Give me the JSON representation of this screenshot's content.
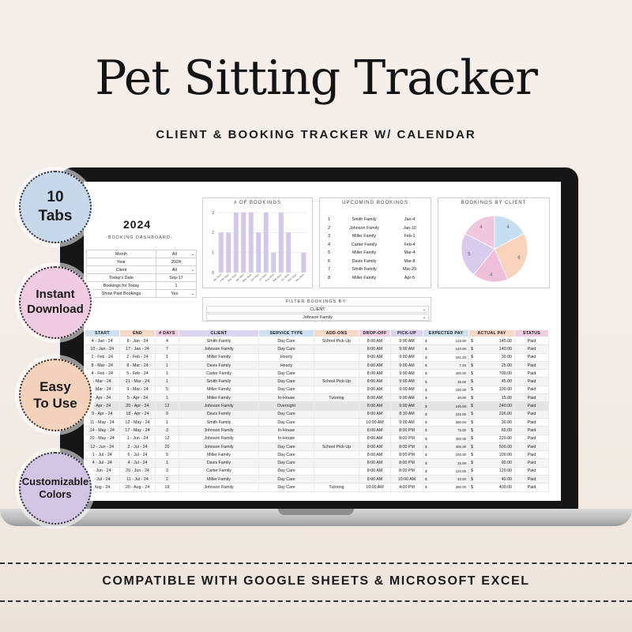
{
  "header": {
    "title": "Pet Sitting Tracker",
    "subtitle": "CLIENT & BOOKING TRACKER W/ CALENDAR"
  },
  "badges": [
    {
      "lines": [
        "10",
        "Tabs"
      ]
    },
    {
      "lines": [
        "Instant",
        "Download"
      ]
    },
    {
      "lines": [
        "Easy",
        "To Use"
      ]
    },
    {
      "lines": [
        "Customizable",
        "Colors"
      ]
    }
  ],
  "footer": {
    "text": "COMPATIBLE WITH GOOGLE SHEETS & MICROSOFT EXCEL"
  },
  "dashboard": {
    "year": "2024",
    "subtitle": "-BOOKING DASHBOARD-",
    "settings": [
      {
        "label": "Month",
        "value": "All",
        "dropdown": true
      },
      {
        "label": "Year",
        "value": "2024",
        "dropdown": false
      },
      {
        "label": "Client",
        "value": "All",
        "dropdown": true
      },
      {
        "label": "Today's Date",
        "value": "Sep-17",
        "dropdown": false
      },
      {
        "label": "Bookings for Today",
        "value": "1",
        "dropdown": false
      },
      {
        "label": "Show Paid Bookings",
        "value": "Yes",
        "dropdown": true
      }
    ],
    "upcoming": {
      "title": "UPCOMING BOOKINGS",
      "rows": [
        {
          "n": "1",
          "client": "Smith Family",
          "date": "Jan-4"
        },
        {
          "n": "2",
          "client": "Johnson Family",
          "date": "Jan-10"
        },
        {
          "n": "3",
          "client": "Miller Family",
          "date": "Feb-1"
        },
        {
          "n": "4",
          "client": "Carter Family",
          "date": "Feb-4"
        },
        {
          "n": "5",
          "client": "Miller Family",
          "date": "Mar-4"
        },
        {
          "n": "6",
          "client": "Davis Family",
          "date": "Mar-8"
        },
        {
          "n": "7",
          "client": "Smith Family",
          "date": "Mar-20"
        },
        {
          "n": "8",
          "client": "Miller Family",
          "date": "Apr-5"
        }
      ]
    },
    "filter": {
      "title": "FILTER BOOKINGS BY:",
      "field": "CLIENT",
      "value": "Johnson Family"
    }
  },
  "chart_data": [
    {
      "type": "bar",
      "title": "# OF BOOKINGS",
      "categories": [
        "Jan 2024",
        "Feb 2024",
        "Mar 2024",
        "Apr 2024",
        "May 2024",
        "Jun 2024",
        "Jul 2024",
        "Aug 2024",
        "Sep 2024",
        "Oct 2024",
        "Nov 2024",
        "Dec 2024"
      ],
      "values": [
        2,
        2,
        3,
        3,
        3,
        2,
        3,
        1,
        3,
        2,
        0,
        1
      ],
      "ylim": [
        0,
        3
      ],
      "yticks": [
        0,
        1,
        2,
        3
      ],
      "color": "#d4c8ea",
      "grid": true
    },
    {
      "type": "pie",
      "title": "BOOKINGS BY CLIENT",
      "values": [
        4,
        6,
        4,
        5,
        4
      ],
      "labels": [
        "4",
        "6",
        "4",
        "5",
        "4"
      ],
      "colors": [
        "#c5def2",
        "#f7d3bb",
        "#efbfd9",
        "#d9cbed",
        "#f0c8de"
      ]
    }
  ],
  "booking_table": {
    "columns": [
      {
        "label": "START",
        "color": "#cfe0f0"
      },
      {
        "label": "END",
        "color": "#f6d8c6"
      },
      {
        "label": "# DAYS",
        "color": "#f0cde0"
      },
      {
        "label": "CLIENT",
        "color": "#dcd3ee"
      },
      {
        "label": "SERVICE TYPE",
        "color": "#cfe0f0"
      },
      {
        "label": "ADD-ONS",
        "color": "#f6d8c6"
      },
      {
        "label": "DROP-OFF",
        "color": "#f0cde0"
      },
      {
        "label": "PICK-UP",
        "color": "#dcd3ee"
      },
      {
        "label": "EXPECTED PAY",
        "color": "#cfe0f0"
      },
      {
        "label": "ACTUAL PAY",
        "color": "#f6d8c6"
      },
      {
        "label": "STATUS",
        "color": "#f0cde0"
      }
    ],
    "currency": "$",
    "rows": [
      [
        "4 - Jan - 24",
        "8 - Jan - 24",
        "4",
        "Smith Family",
        "Day Care",
        "School Pick-Up",
        "8:00 AM",
        "9:00 AM",
        "125.00",
        "145.00",
        "Paid"
      ],
      [
        "10 - Jan - 24",
        "17 - Jan - 24",
        "7",
        "Johnson Family",
        "Day Care",
        "",
        "8:00 AM",
        "9:00 AM",
        "140.00",
        "140.00",
        "Paid"
      ],
      [
        "1 - Feb - 24",
        "2 - Feb - 24",
        "1",
        "Miller Family",
        "Hourly",
        "",
        "8:00 AM",
        "9:00 AM",
        "181.25",
        "30.00",
        "Paid"
      ],
      [
        "8 - Mar - 24",
        "8 - Mar - 24",
        "1",
        "Davis Family",
        "Hourly",
        "",
        "8:00 AM",
        "9:00 AM",
        "7.25",
        "25.00",
        "Paid"
      ],
      [
        "4 - Feb - 24",
        "5 - Feb - 24",
        "1",
        "Carter Family",
        "Day Care",
        "",
        "8:00 AM",
        "9:00 AM",
        "400.00",
        "700.00",
        "Paid"
      ],
      [
        "- Mar - 24",
        "21 - Mar - 24",
        "1",
        "Smith Family",
        "Day Care",
        "School Pick-Up",
        "8:00 AM",
        "9:00 AM",
        "35.00",
        "45.00",
        "Paid"
      ],
      [
        "- Mar - 24",
        "9 - Mar - 24",
        "5",
        "Miller Family",
        "Day Care",
        "",
        "8:00 AM",
        "9:00 AM",
        "100.00",
        "100.00",
        "Paid"
      ],
      [
        "- Apr - 24",
        "5 - Apr - 24",
        "1",
        "Miller Family",
        "In-House",
        "Tutoring",
        "8:00 AM",
        "9:00 AM",
        "30.00",
        "15.00",
        "Paid"
      ],
      [
        "- Apr - 24",
        "20 - Apr - 24",
        "12",
        "Johnson Family",
        "Overnight",
        "",
        "8:00 AM",
        "9:00 AM",
        "240.00",
        "240.00",
        "Paid"
      ],
      [
        "9 - Apr - 24",
        "18 - Apr - 24",
        "9",
        "Davis Family",
        "Day Care",
        "",
        "8:00 AM",
        "8:30 AM",
        "225.00",
        "226.00",
        "Paid"
      ],
      [
        "11 - May - 24",
        "12 - May - 24",
        "1",
        "Smith Family",
        "Day Care",
        "",
        "10:00 AM",
        "9:00 AM",
        "350.00",
        "30.00",
        "Paid"
      ],
      [
        "14 - May - 24",
        "17 - May - 24",
        "3",
        "Johnson Family",
        "In-House",
        "",
        "8:00 AM",
        "8:00 PM",
        "75.00",
        "60.00",
        "Paid"
      ],
      [
        "20 - May - 24",
        "1 - Jun - 24",
        "12",
        "Johnson Family",
        "In-House",
        "",
        "8:00 AM",
        "8:00 PM",
        "300.00",
        "220.00",
        "Paid"
      ],
      [
        "12 - Jun - 24",
        "2 - Jul - 24",
        "20",
        "Johnson Family",
        "Day Care",
        "School Pick-Up",
        "8:00 AM",
        "8:00 PM",
        "405.00",
        "500.00",
        "Paid"
      ],
      [
        "1 - Jul - 24",
        "6 - Jul - 24",
        "5",
        "Miller Family",
        "Day Care",
        "",
        "8:00 AM",
        "8:00 PM",
        "100.00",
        "100.00",
        "Paid"
      ],
      [
        "4 - Jul - 24",
        "4 - Jul - 24",
        "1",
        "Davis Family",
        "Day Care",
        "",
        "8:00 AM",
        "8:00 PM",
        "25.00",
        "90.00",
        "Paid"
      ],
      [
        "- Jun - 24",
        "20 - Jun - 24",
        "3",
        "Carter Family",
        "Day Care",
        "",
        "8:00 AM",
        "8:00 PM",
        "120.00",
        "120.00",
        "Paid"
      ],
      [
        "- Jul - 24",
        "11 - Jul - 24",
        "2",
        "Miller Family",
        "Day Care",
        "",
        "8:00 AM",
        "10:00 AM",
        "40.00",
        "40.00",
        "Paid"
      ],
      [
        "Aug - 24",
        "20 - Aug - 24",
        "19",
        "Johnson Family",
        "Day Care",
        "Tutoring",
        "10:00 AM",
        "4:00 PM",
        "390.00",
        "400.00",
        "Paid"
      ]
    ]
  }
}
